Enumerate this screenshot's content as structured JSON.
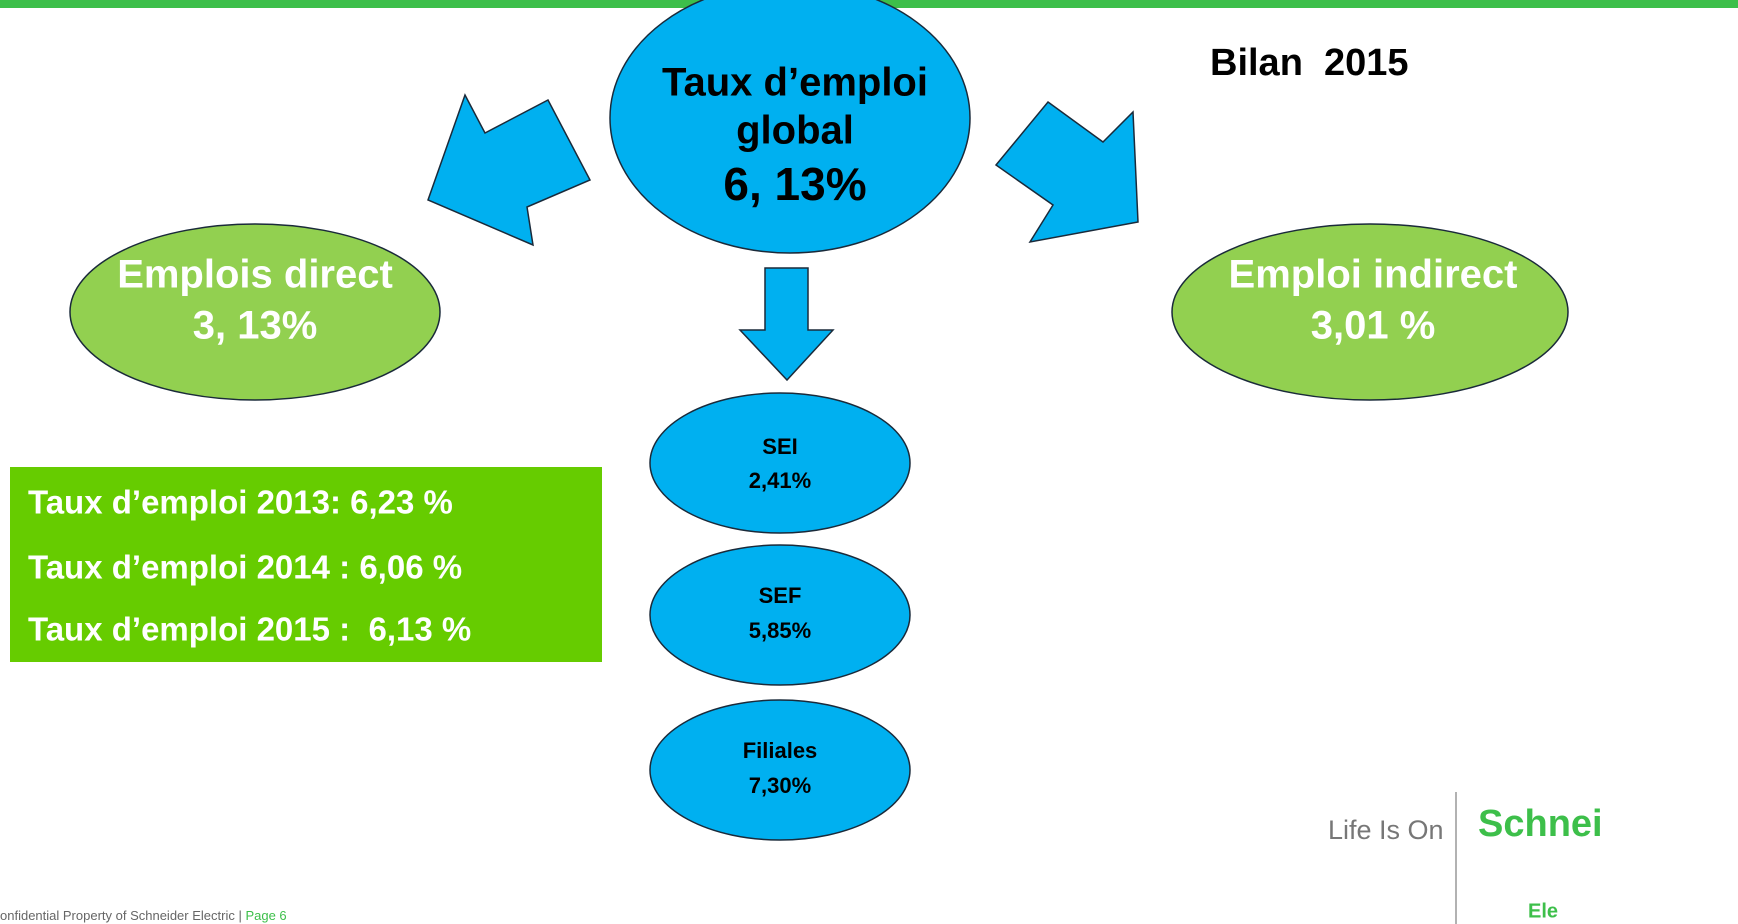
{
  "header": {
    "title": "Bilan  2015"
  },
  "nodes": [
    {
      "lines": [
        "Taux d’emploi",
        "global",
        "6, 13%"
      ]
    },
    {
      "lines": [
        "Emplois direct",
        "3, 13%"
      ]
    },
    {
      "lines": [
        "Emploi indirect",
        "3,01 %"
      ]
    },
    {
      "lines": [
        "SEI",
        "2,41%"
      ]
    },
    {
      "lines": [
        "SEF",
        "5,85%"
      ]
    },
    {
      "lines": [
        "Filiales",
        "7,30%"
      ]
    }
  ],
  "history": [
    "Taux d’emploi 2013: 6,23 %",
    "Taux d’emploi 2014 : 6,06 %",
    "Taux d’emploi 2015 :  6,13 %"
  ],
  "footer": {
    "text": "onfidential Property of Schneider Electric | ",
    "page": "Page 6"
  },
  "logo": {
    "tagline": "Life Is On",
    "brand": "Schnei",
    "brand_sub": "Ele"
  }
}
